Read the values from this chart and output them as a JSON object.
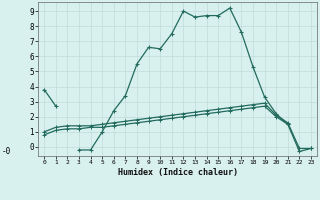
{
  "xlabel": "Humidex (Indice chaleur)",
  "x": [
    0,
    1,
    2,
    3,
    4,
    5,
    6,
    7,
    8,
    9,
    10,
    11,
    12,
    13,
    14,
    15,
    16,
    17,
    18,
    19,
    20,
    21,
    22,
    23
  ],
  "line1": [
    3.8,
    2.7,
    null,
    -0.2,
    -0.2,
    1.0,
    2.4,
    3.4,
    5.5,
    6.6,
    6.5,
    7.5,
    9.0,
    8.6,
    8.7,
    8.7,
    9.2,
    7.6,
    5.3,
    3.3,
    2.2,
    1.5,
    -0.3,
    -0.1
  ],
  "line2": [
    1.0,
    1.3,
    1.4,
    1.4,
    1.4,
    1.5,
    1.6,
    1.7,
    1.8,
    1.9,
    2.0,
    2.1,
    2.2,
    2.3,
    2.4,
    2.5,
    2.6,
    2.7,
    2.8,
    2.9,
    2.1,
    1.6,
    -0.1,
    -0.1
  ],
  "line3": [
    0.8,
    1.1,
    1.2,
    1.2,
    1.3,
    1.3,
    1.4,
    1.5,
    1.6,
    1.7,
    1.8,
    1.9,
    2.0,
    2.1,
    2.2,
    2.3,
    2.4,
    2.5,
    2.6,
    2.7,
    2.0,
    1.5,
    null,
    null
  ],
  "line_color": "#226b5e",
  "bg_color": "#d8f0ee",
  "grid_color": "#c0dcd8",
  "ylim": [
    -0.6,
    9.6
  ],
  "xlim": [
    -0.5,
    23.5
  ],
  "yticks": [
    0,
    1,
    2,
    3,
    4,
    5,
    6,
    7,
    8,
    9
  ],
  "xticks": [
    0,
    1,
    2,
    3,
    4,
    5,
    6,
    7,
    8,
    9,
    10,
    11,
    12,
    13,
    14,
    15,
    16,
    17,
    18,
    19,
    20,
    21,
    22,
    23
  ],
  "yticklabels": [
    "0",
    "1",
    "2",
    "3",
    "4",
    "5",
    "6",
    "7",
    "8",
    "9"
  ],
  "neg_zero_label": "-0"
}
